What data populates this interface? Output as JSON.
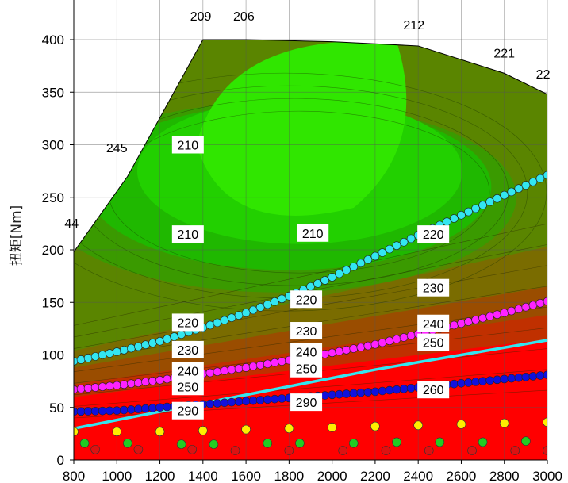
{
  "chart_data": {
    "type": "contour",
    "xlabel": "",
    "ylabel": "扭矩[Nm]",
    "xlim": [
      800,
      3000
    ],
    "ylim": [
      0,
      400
    ],
    "x_ticks": [
      "800",
      "1000",
      "1200",
      "1400",
      "1600",
      "1800",
      "2000",
      "2200",
      "2400",
      "2600",
      "2800",
      "3000"
    ],
    "y_ticks": [
      "0",
      "50",
      "100",
      "150",
      "200",
      "250",
      "300",
      "350",
      "400"
    ],
    "grid": true,
    "max_torque_curve": {
      "x": [
        800,
        1050,
        1400,
        1600,
        2000,
        2400,
        2800,
        3000
      ],
      "y": [
        198,
        270,
        400,
        400,
        398,
        394,
        368,
        348
      ]
    },
    "max_torque_labels": [
      {
        "x": 790,
        "y": 221,
        "text": "44"
      },
      {
        "x": 1000,
        "y": 293,
        "text": "245"
      },
      {
        "x": 1390,
        "y": 418,
        "text": "209"
      },
      {
        "x": 1590,
        "y": 418,
        "text": "206"
      },
      {
        "x": 2380,
        "y": 410,
        "text": "212"
      },
      {
        "x": 2800,
        "y": 383,
        "text": "221"
      },
      {
        "x": 2980,
        "y": 363,
        "text": "22"
      }
    ],
    "contour_labels": [
      {
        "x": 1330,
        "y": 300,
        "text": "210"
      },
      {
        "x": 1330,
        "y": 215,
        "text": "210"
      },
      {
        "x": 1910,
        "y": 216,
        "text": "210"
      },
      {
        "x": 2470,
        "y": 215,
        "text": "220"
      },
      {
        "x": 1880,
        "y": 153,
        "text": "220"
      },
      {
        "x": 1330,
        "y": 131,
        "text": "220"
      },
      {
        "x": 2470,
        "y": 164,
        "text": "230"
      },
      {
        "x": 1880,
        "y": 123,
        "text": "230"
      },
      {
        "x": 1330,
        "y": 105,
        "text": "230"
      },
      {
        "x": 2470,
        "y": 130,
        "text": "240"
      },
      {
        "x": 1880,
        "y": 103,
        "text": "240"
      },
      {
        "x": 1330,
        "y": 85,
        "text": "240"
      },
      {
        "x": 2470,
        "y": 112,
        "text": "250"
      },
      {
        "x": 1880,
        "y": 87,
        "text": "250"
      },
      {
        "x": 1330,
        "y": 70,
        "text": "250"
      },
      {
        "x": 2470,
        "y": 67,
        "text": "260"
      },
      {
        "x": 1880,
        "y": 55,
        "text": "290"
      },
      {
        "x": 1330,
        "y": 47,
        "text": "290"
      }
    ],
    "zone_colors": [
      "#30e600",
      "#22d000",
      "#1fb800",
      "#3a9a00",
      "#5a8500",
      "#7a6c00",
      "#9a4d00",
      "#c03000",
      "#ff0000"
    ],
    "series": [
      {
        "color": "#33e6f0",
        "marker": "circle",
        "points": [
          [
            800,
            94
          ],
          [
            1000,
            103
          ],
          [
            1200,
            113
          ],
          [
            1400,
            126
          ],
          [
            1600,
            140
          ],
          [
            1800,
            156
          ],
          [
            2000,
            174
          ],
          [
            2200,
            194
          ],
          [
            2400,
            214
          ],
          [
            2600,
            233
          ],
          [
            2800,
            252
          ],
          [
            3000,
            271
          ]
        ]
      },
      {
        "color": "#ff22ff",
        "marker": "circle",
        "points": [
          [
            800,
            67
          ],
          [
            1000,
            71
          ],
          [
            1200,
            76
          ],
          [
            1400,
            82
          ],
          [
            1600,
            88
          ],
          [
            1800,
            95
          ],
          [
            2000,
            102
          ],
          [
            2200,
            110
          ],
          [
            2400,
            120
          ],
          [
            2600,
            130
          ],
          [
            2800,
            140
          ],
          [
            3000,
            151
          ]
        ]
      },
      {
        "color": "#33e6f0",
        "marker": "line",
        "points": [
          [
            800,
            30
          ],
          [
            1000,
            38
          ],
          [
            1200,
            46
          ],
          [
            1400,
            54
          ],
          [
            1600,
            62
          ],
          [
            1800,
            70
          ],
          [
            2000,
            78
          ],
          [
            2200,
            86
          ],
          [
            2400,
            93
          ],
          [
            2600,
            100
          ],
          [
            2800,
            107
          ],
          [
            3000,
            114
          ]
        ]
      },
      {
        "color": "#1111dd",
        "marker": "circle",
        "points": [
          [
            800,
            46
          ],
          [
            1000,
            47
          ],
          [
            1200,
            50
          ],
          [
            1400,
            53
          ],
          [
            1600,
            56
          ],
          [
            1800,
            59
          ],
          [
            2000,
            62
          ],
          [
            2200,
            65
          ],
          [
            2400,
            69
          ],
          [
            2600,
            73
          ],
          [
            2800,
            77
          ],
          [
            3000,
            81
          ]
        ]
      },
      {
        "color": "#ffee00",
        "marker": "circle",
        "points": [
          [
            800,
            27
          ],
          [
            1000,
            27
          ],
          [
            1200,
            27
          ],
          [
            1400,
            28
          ],
          [
            1600,
            29
          ],
          [
            1800,
            30
          ],
          [
            2000,
            31
          ],
          [
            2200,
            32
          ],
          [
            2400,
            33
          ],
          [
            2600,
            34
          ],
          [
            2800,
            35
          ],
          [
            3000,
            36
          ]
        ]
      },
      {
        "color": "#22cc22",
        "marker": "circle",
        "points": [
          [
            850,
            16
          ],
          [
            1050,
            16
          ],
          [
            1300,
            15
          ],
          [
            1450,
            15
          ],
          [
            1700,
            16
          ],
          [
            1850,
            16
          ],
          [
            2100,
            16
          ],
          [
            2300,
            17
          ],
          [
            2500,
            17
          ],
          [
            2700,
            17
          ],
          [
            2900,
            18
          ]
        ]
      },
      {
        "color": "#dd1111",
        "marker": "circle",
        "points": [
          [
            900,
            10
          ],
          [
            1100,
            10
          ],
          [
            1350,
            10
          ],
          [
            1550,
            9
          ],
          [
            1800,
            9
          ],
          [
            2050,
            9
          ],
          [
            2250,
            9
          ],
          [
            2450,
            9
          ],
          [
            2650,
            9
          ],
          [
            2850,
            9
          ],
          [
            3000,
            9
          ]
        ]
      }
    ]
  }
}
